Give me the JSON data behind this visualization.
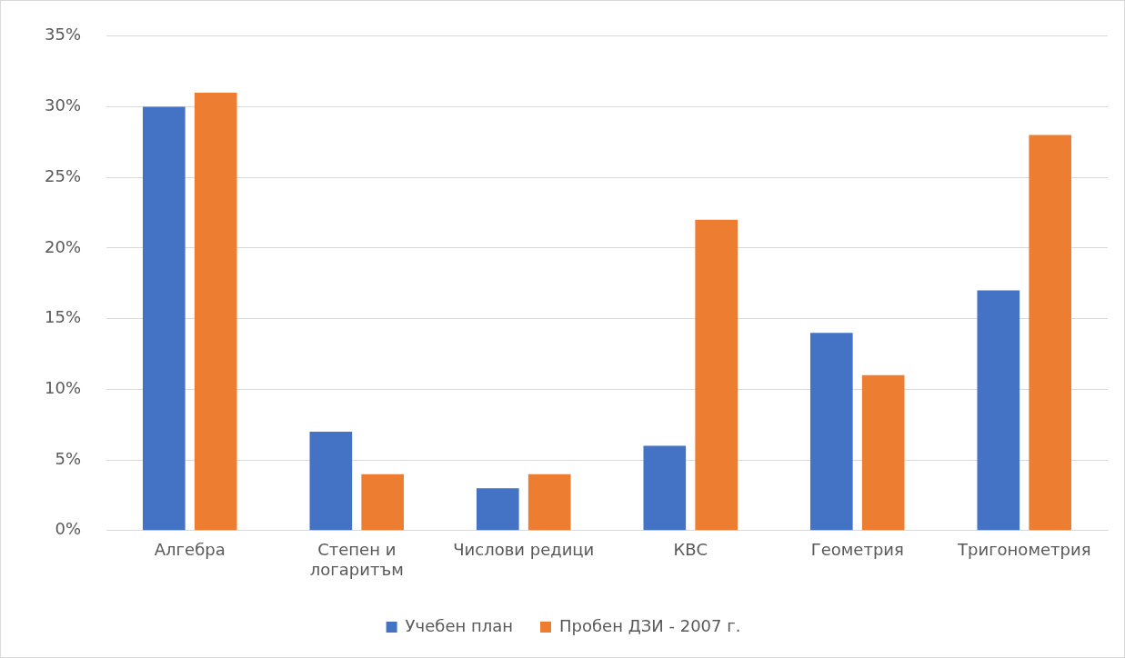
{
  "chart_data": {
    "type": "bar",
    "categories": [
      "Алгебра",
      "Степен и логаритъм",
      "Числови редици",
      "КВС",
      "Геометрия",
      "Тригонометрия"
    ],
    "series": [
      {
        "name": "Учебен план",
        "color": "#4472c4",
        "values": [
          30,
          7,
          3,
          6,
          14,
          17
        ]
      },
      {
        "name": "Пробен ДЗИ - 2007 г.",
        "color": "#ed7d31",
        "values": [
          31,
          4,
          4,
          22,
          11,
          28
        ]
      }
    ],
    "ylim": [
      0,
      35
    ],
    "yticks": [
      {
        "value": 0,
        "label": "0%"
      },
      {
        "value": 5,
        "label": "5%"
      },
      {
        "value": 10,
        "label": "10%"
      },
      {
        "value": 15,
        "label": "15%"
      },
      {
        "value": 20,
        "label": "20%"
      },
      {
        "value": 25,
        "label": "25%"
      },
      {
        "value": 30,
        "label": "30%"
      },
      {
        "value": 35,
        "label": "35%"
      }
    ],
    "grid": "y",
    "legend": "bottom"
  }
}
